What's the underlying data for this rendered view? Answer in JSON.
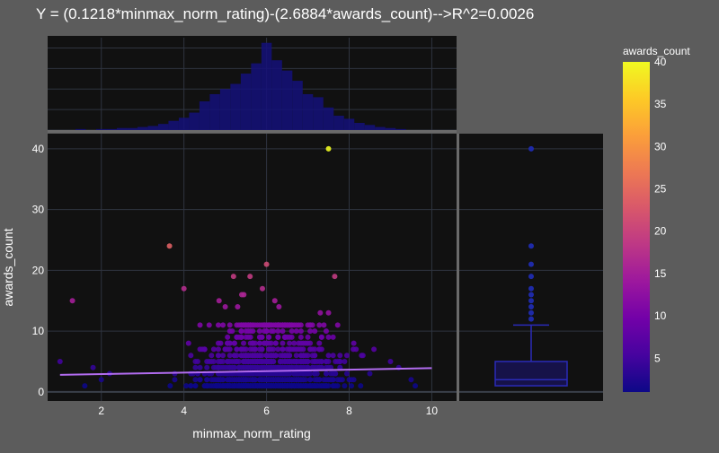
{
  "chart_data": {
    "type": "scatter",
    "title": "Y = (0.1218*minmax_norm_rating)-(2.6884*awards_count)-->R^2=0.0026",
    "xlabel": "minmax_norm_rating",
    "ylabel": "awards_count",
    "xlim": [
      0.7,
      10.6
    ],
    "ylim": [
      -1.5,
      42.5
    ],
    "xticks": [
      2,
      4,
      6,
      8,
      10
    ],
    "yticks": [
      0,
      10,
      20,
      30,
      40
    ],
    "grid": true,
    "colorbar": {
      "title": "awards_count",
      "range": [
        1,
        40
      ],
      "ticks": [
        5,
        10,
        15,
        20,
        25,
        30,
        35,
        40
      ],
      "colors": [
        "#0d0887",
        "#46039f",
        "#7201a8",
        "#9c179e",
        "#bd3786",
        "#d8576b",
        "#ed7953",
        "#fb9f3a",
        "#fdca26",
        "#f0f921"
      ]
    },
    "trendline": {
      "x": [
        1.0,
        10.0
      ],
      "y": [
        2.8,
        3.9
      ]
    },
    "outliers": [
      {
        "x": 7.5,
        "y": 40
      },
      {
        "x": 3.65,
        "y": 24
      },
      {
        "x": 6.0,
        "y": 21
      },
      {
        "x": 1.3,
        "y": 15
      },
      {
        "x": 4.0,
        "y": 17
      },
      {
        "x": 5.2,
        "y": 19
      },
      {
        "x": 5.6,
        "y": 19
      },
      {
        "x": 7.65,
        "y": 19
      },
      {
        "x": 5.9,
        "y": 17
      },
      {
        "x": 5.4,
        "y": 16
      },
      {
        "x": 5.45,
        "y": 16
      },
      {
        "x": 4.85,
        "y": 15
      },
      {
        "x": 6.2,
        "y": 15
      },
      {
        "x": 6.3,
        "y": 14
      },
      {
        "x": 7.3,
        "y": 13
      },
      {
        "x": 7.5,
        "y": 13
      },
      {
        "x": 5.3,
        "y": 14
      },
      {
        "x": 5.0,
        "y": 14
      },
      {
        "x": 1.0,
        "y": 5
      },
      {
        "x": 8.1,
        "y": 7
      },
      {
        "x": 8.3,
        "y": 6
      },
      {
        "x": 8.6,
        "y": 7
      },
      {
        "x": 9.0,
        "y": 5
      },
      {
        "x": 9.2,
        "y": 4
      },
      {
        "x": 9.5,
        "y": 2
      },
      {
        "x": 9.6,
        "y": 1
      },
      {
        "x": 1.8,
        "y": 4
      },
      {
        "x": 1.6,
        "y": 1
      },
      {
        "x": 2.0,
        "y": 2
      },
      {
        "x": 2.2,
        "y": 3
      }
    ],
    "histogram_bins": [
      {
        "x": 1.5,
        "count": 1
      },
      {
        "x": 2.0,
        "count": 1
      },
      {
        "x": 2.25,
        "count": 1
      },
      {
        "x": 2.5,
        "count": 2
      },
      {
        "x": 2.75,
        "count": 2
      },
      {
        "x": 3.0,
        "count": 3
      },
      {
        "x": 3.25,
        "count": 4
      },
      {
        "x": 3.5,
        "count": 6
      },
      {
        "x": 3.75,
        "count": 9
      },
      {
        "x": 4.0,
        "count": 12
      },
      {
        "x": 4.25,
        "count": 17
      },
      {
        "x": 4.5,
        "count": 28
      },
      {
        "x": 4.75,
        "count": 35
      },
      {
        "x": 5.0,
        "count": 40
      },
      {
        "x": 5.25,
        "count": 45
      },
      {
        "x": 5.5,
        "count": 55
      },
      {
        "x": 5.75,
        "count": 65
      },
      {
        "x": 6.0,
        "count": 85
      },
      {
        "x": 6.25,
        "count": 68
      },
      {
        "x": 6.5,
        "count": 58
      },
      {
        "x": 6.75,
        "count": 48
      },
      {
        "x": 7.0,
        "count": 35
      },
      {
        "x": 7.25,
        "count": 32
      },
      {
        "x": 7.5,
        "count": 22
      },
      {
        "x": 7.75,
        "count": 14
      },
      {
        "x": 8.0,
        "count": 11
      },
      {
        "x": 8.25,
        "count": 7
      },
      {
        "x": 8.5,
        "count": 5
      },
      {
        "x": 8.75,
        "count": 3
      },
      {
        "x": 9.0,
        "count": 2
      },
      {
        "x": 9.25,
        "count": 1
      }
    ],
    "box": {
      "q1": 1,
      "median": 2,
      "q3": 5,
      "lower_fence": 1,
      "upper_fence": 11,
      "outliers": [
        12,
        13,
        14,
        15,
        16,
        17,
        19,
        21,
        24,
        40
      ]
    }
  }
}
